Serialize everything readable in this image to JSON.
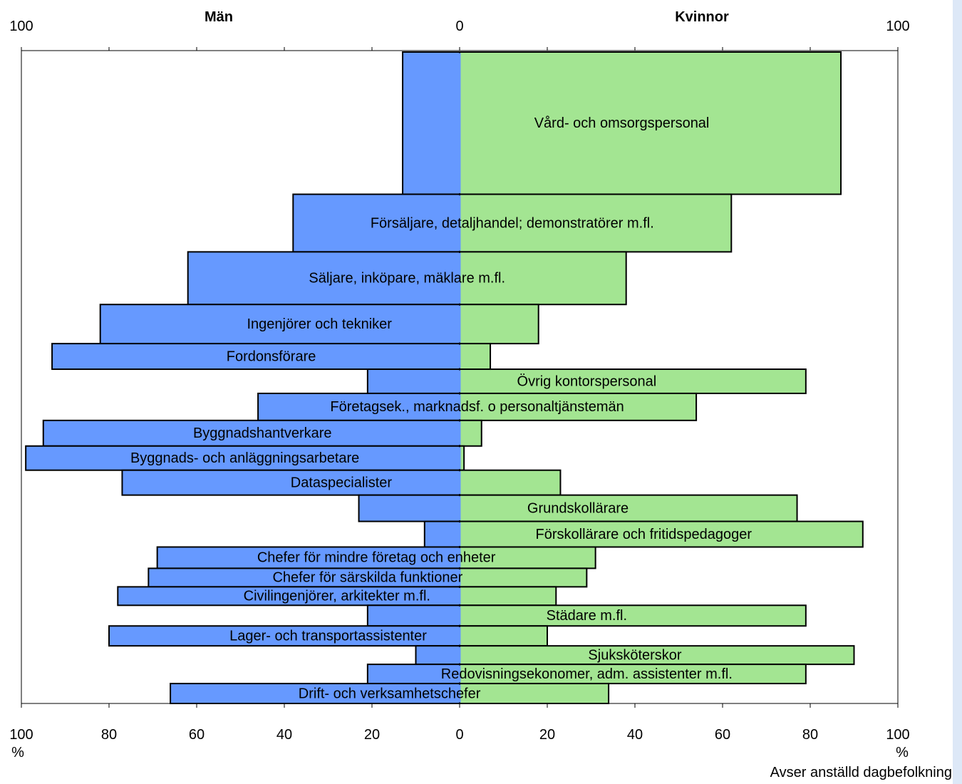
{
  "chart_data": {
    "type": "bar",
    "subtype": "diverging-horizontal",
    "header_left": "Män",
    "header_right": "Kvinnor",
    "top_left_label": "100",
    "top_center_label": "0",
    "top_right_label": "100",
    "x_ticks_left": [
      "100",
      "80",
      "60",
      "40",
      "20",
      "0"
    ],
    "x_ticks_right": [
      "20",
      "40",
      "60",
      "80",
      "100"
    ],
    "unit_left": "%",
    "unit_right": "%",
    "xlim_left": [
      0,
      100
    ],
    "xlim_right": [
      0,
      100
    ],
    "note": "Avser anställd dagbefolkning",
    "colors": {
      "men": "#6699ff",
      "women": "#a3e592",
      "outline": "#000000"
    },
    "categories": [
      {
        "label": "Vård- och omsorgspersonal",
        "men": 13,
        "women": 87,
        "weight": 200
      },
      {
        "label": "Försäljare, detaljhandel; demonstratörer m.fl.",
        "men": 38,
        "women": 62,
        "weight": 81
      },
      {
        "label": "Säljare, inköpare, mäklare m.fl.",
        "men": 62,
        "women": 38,
        "weight": 74
      },
      {
        "label": "Ingenjörer och tekniker",
        "men": 82,
        "women": 18,
        "weight": 55
      },
      {
        "label": "Fordonsförare",
        "men": 93,
        "women": 7,
        "weight": 36
      },
      {
        "label": "Övrig kontorspersonal",
        "men": 21,
        "women": 79,
        "weight": 34
      },
      {
        "label": "Företagsek., marknadsf. o personaltjänstemän",
        "men": 46,
        "women": 54,
        "weight": 38
      },
      {
        "label": "Byggnadshantverkare",
        "men": 95,
        "women": 5,
        "weight": 36
      },
      {
        "label": "Byggnads- och anläggningsarbetare",
        "men": 99,
        "women": 1,
        "weight": 34
      },
      {
        "label": "Dataspecialister",
        "men": 77,
        "women": 23,
        "weight": 35
      },
      {
        "label": "Grundskollärare",
        "men": 23,
        "women": 77,
        "weight": 37
      },
      {
        "label": "Förskollärare och fritidspedagoger",
        "men": 8,
        "women": 92,
        "weight": 36
      },
      {
        "label": "Chefer för mindre företag och enheter",
        "men": 69,
        "women": 31,
        "weight": 30
      },
      {
        "label": "Chefer för särskilda funktioner",
        "men": 71,
        "women": 29,
        "weight": 26
      },
      {
        "label": "Civilingenjörer, arkitekter m.fl.",
        "men": 78,
        "women": 22,
        "weight": 26
      },
      {
        "label": "Städare m.fl.",
        "men": 21,
        "women": 79,
        "weight": 29
      },
      {
        "label": "Lager- och transportassistenter",
        "men": 80,
        "women": 20,
        "weight": 28
      },
      {
        "label": "Sjuksköterskor",
        "men": 10,
        "women": 90,
        "weight": 26
      },
      {
        "label": "Redovisningsekonomer, adm. assistenter m.fl.",
        "men": 21,
        "women": 79,
        "weight": 27
      },
      {
        "label": "Drift- och verksamhetschefer",
        "men": 66,
        "women": 34,
        "weight": 28
      }
    ]
  }
}
